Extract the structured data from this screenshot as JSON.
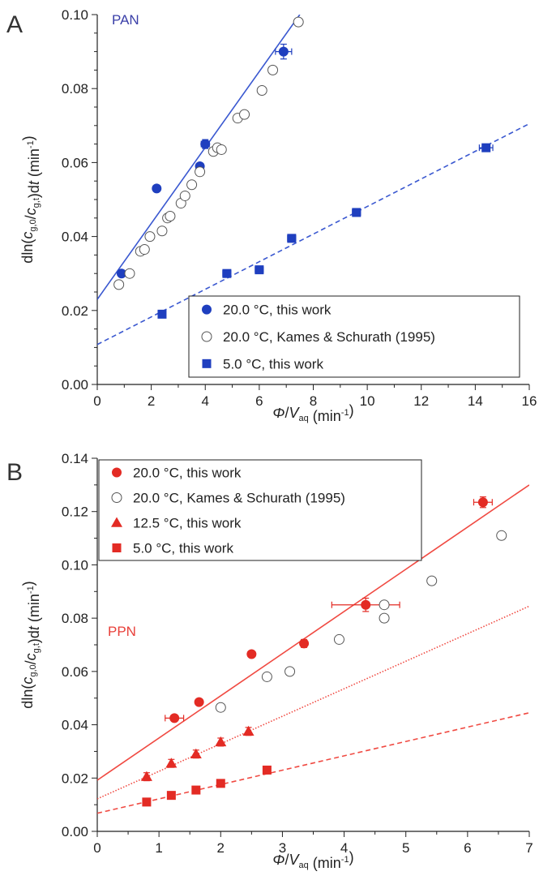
{
  "chart_data": [
    {
      "panel": "A",
      "type": "scatter",
      "annotation": "PAN",
      "annotation_color": "#3a3fa8",
      "ylabel": "dln(c_g,0/c_g,t)dt (min^-1)",
      "xlabel": "Φ/V_aq (min^-1)",
      "xlim": [
        0,
        16
      ],
      "ylim": [
        0.0,
        0.1
      ],
      "xticks": [
        "0",
        "2",
        "4",
        "6",
        "8",
        "10",
        "12",
        "14",
        "16"
      ],
      "yticks": [
        "0.00",
        "0.02",
        "0.04",
        "0.06",
        "0.08",
        "0.10"
      ],
      "legend": {
        "placement": "bottom-right"
      },
      "series": [
        {
          "name": "20.0 °C, this work",
          "marker": "circle-filled",
          "color": "#1f3fbf",
          "points": [
            [
              0.9,
              0.03
            ],
            [
              1.2,
              0.03
            ],
            [
              2.2,
              0.053
            ],
            [
              3.8,
              0.059
            ],
            [
              4.0,
              0.065
            ],
            [
              6.9,
              0.09
            ]
          ],
          "xerr": [
            0.1,
            0.1,
            0.1,
            0.1,
            0.15,
            0.3
          ],
          "yerr": [
            0.0008,
            0.0008,
            0.0008,
            0.0008,
            0.0012,
            0.002
          ]
        },
        {
          "name": "20.0 °C, Kames & Schurath (1995)",
          "marker": "circle-open",
          "color": "#555555",
          "points": [
            [
              0.8,
              0.027
            ],
            [
              1.2,
              0.03
            ],
            [
              1.6,
              0.036
            ],
            [
              1.75,
              0.0365
            ],
            [
              1.95,
              0.04
            ],
            [
              2.4,
              0.0415
            ],
            [
              2.6,
              0.045
            ],
            [
              2.7,
              0.0455
            ],
            [
              3.1,
              0.049
            ],
            [
              3.25,
              0.051
            ],
            [
              3.5,
              0.054
            ],
            [
              3.8,
              0.0575
            ],
            [
              4.3,
              0.063
            ],
            [
              4.45,
              0.064
            ],
            [
              4.6,
              0.0635
            ],
            [
              5.2,
              0.072
            ],
            [
              5.45,
              0.073
            ],
            [
              6.1,
              0.0795
            ],
            [
              6.5,
              0.085
            ],
            [
              7.45,
              0.098
            ]
          ]
        },
        {
          "name": "5.0 °C, this work",
          "marker": "square-filled",
          "color": "#1f3fbf",
          "points": [
            [
              2.4,
              0.019
            ],
            [
              4.8,
              0.03
            ],
            [
              6.0,
              0.031
            ],
            [
              7.2,
              0.0395
            ],
            [
              9.6,
              0.0465
            ],
            [
              14.4,
              0.064
            ]
          ],
          "xerr": [
            0.1,
            0.15,
            0.15,
            0.15,
            0.15,
            0.25
          ],
          "yerr": [
            0.0006,
            0.0007,
            0.0007,
            0.0008,
            0.0006,
            0.0006
          ]
        }
      ],
      "fits": [
        {
          "style": "solid",
          "color": "#3a58d0",
          "x": [
            0,
            7.5
          ],
          "y": [
            0.023,
            0.1
          ]
        },
        {
          "style": "dashed",
          "color": "#3a58d0",
          "x": [
            0,
            16
          ],
          "y": [
            0.0108,
            0.0705
          ]
        }
      ]
    },
    {
      "panel": "B",
      "type": "scatter",
      "annotation": "PPN",
      "annotation_color": "#e8403a",
      "ylabel": "dln(c_g,0/c_g,t)dt (min^-1)",
      "xlabel": "Φ/V_aq (min^-1)",
      "xlim": [
        0,
        7
      ],
      "ylim": [
        0.0,
        0.14
      ],
      "xticks": [
        "0",
        "1",
        "2",
        "3",
        "4",
        "5",
        "6",
        "7"
      ],
      "yticks": [
        "0.00",
        "0.02",
        "0.04",
        "0.06",
        "0.08",
        "0.10",
        "0.12",
        "0.14"
      ],
      "legend": {
        "placement": "top-left"
      },
      "series": [
        {
          "name": "20.0 °C, this work",
          "marker": "circle-filled",
          "color": "#e32b24",
          "points": [
            [
              1.25,
              0.0425
            ],
            [
              1.65,
              0.0485
            ],
            [
              2.5,
              0.0665
            ],
            [
              3.35,
              0.0705
            ],
            [
              4.35,
              0.085
            ],
            [
              6.25,
              0.1235
            ]
          ],
          "xerr": [
            0.15,
            0.02,
            0.02,
            0.05,
            0.55,
            0.15
          ],
          "yerr": [
            0.001,
            0.001,
            0.001,
            0.0015,
            0.0025,
            0.002
          ]
        },
        {
          "name": "20.0 °C, Kames & Schurath (1995)",
          "marker": "circle-open",
          "color": "#555555",
          "points": [
            [
              2.0,
              0.0465
            ],
            [
              2.75,
              0.058
            ],
            [
              3.12,
              0.06
            ],
            [
              3.92,
              0.072
            ],
            [
              4.65,
              0.08
            ],
            [
              4.65,
              0.085
            ],
            [
              5.42,
              0.094
            ],
            [
              6.55,
              0.111
            ]
          ]
        },
        {
          "name": "12.5 °C, this work",
          "marker": "triangle-filled",
          "color": "#e32b24",
          "points": [
            [
              0.8,
              0.0205
            ],
            [
              1.2,
              0.0255
            ],
            [
              1.6,
              0.029
            ],
            [
              2.0,
              0.0335
            ],
            [
              2.45,
              0.0375
            ]
          ],
          "yerr": [
            0.0015,
            0.0015,
            0.0015,
            0.0015,
            0.0015
          ]
        },
        {
          "name": "5.0 °C, this work",
          "marker": "square-filled",
          "color": "#e32b24",
          "points": [
            [
              0.8,
              0.011
            ],
            [
              1.2,
              0.0135
            ],
            [
              1.6,
              0.0155
            ],
            [
              2.0,
              0.018
            ],
            [
              2.75,
              0.023
            ]
          ]
        }
      ],
      "fits": [
        {
          "style": "solid",
          "color": "#f04a42",
          "x": [
            0,
            7
          ],
          "y": [
            0.0192,
            0.13
          ]
        },
        {
          "style": "dotted",
          "color": "#f04a42",
          "x": [
            0,
            7
          ],
          "y": [
            0.0122,
            0.0845
          ]
        },
        {
          "style": "dashed",
          "color": "#f04a42",
          "x": [
            0,
            7
          ],
          "y": [
            0.0068,
            0.0445
          ]
        }
      ]
    }
  ]
}
